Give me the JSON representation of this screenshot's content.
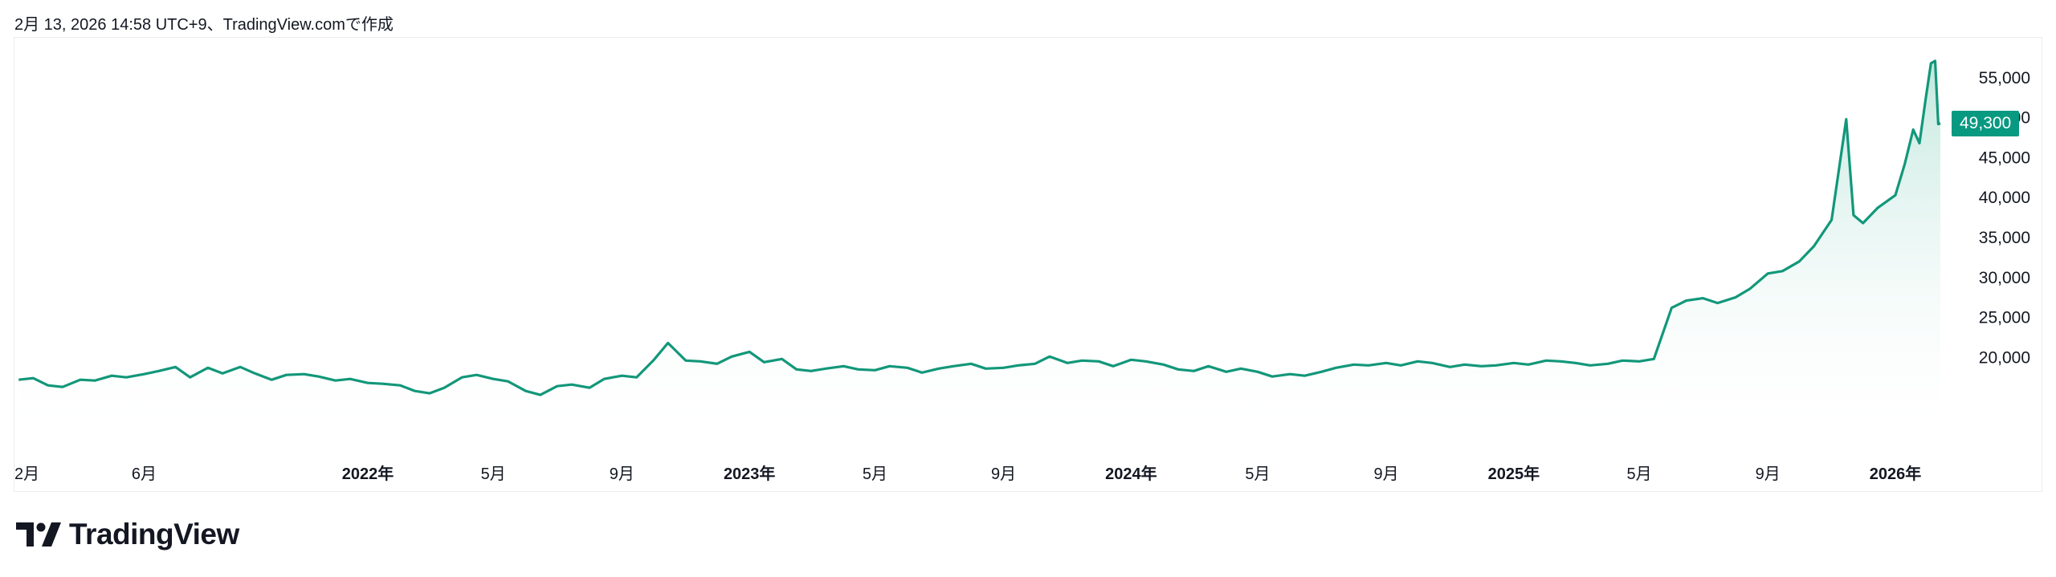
{
  "caption": "2月 13, 2026 14:58 UTC+9、TradingView.comで作成",
  "brand": {
    "name": "TradingView",
    "logo_icon": "tradingview-logo-icon"
  },
  "price_label": {
    "value": "49,300",
    "color": "#089981"
  },
  "colors": {
    "line": "#12977a",
    "fill_top": "#bfe6dc",
    "fill_bottom": "#ffffff"
  },
  "chart_data": {
    "type": "area",
    "title": "",
    "xlabel": "",
    "ylabel": "",
    "ylim": [
      12000,
      60000
    ],
    "y_ticks": [
      {
        "value": 55000,
        "label": "55,000"
      },
      {
        "value": 50000,
        "label": "50,000"
      },
      {
        "value": 45000,
        "label": "45,000"
      },
      {
        "value": 40000,
        "label": "40,000"
      },
      {
        "value": 35000,
        "label": "35,000"
      },
      {
        "value": 30000,
        "label": "30,000"
      },
      {
        "value": 25000,
        "label": "25,000"
      },
      {
        "value": 20000,
        "label": "20,000"
      }
    ],
    "x_ticks": [
      {
        "date": "2021-02-01",
        "label": "2月",
        "year": false
      },
      {
        "date": "2021-06-01",
        "label": "6月",
        "year": false
      },
      {
        "date": "2022-01-01",
        "label": "2022年",
        "year": true
      },
      {
        "date": "2022-05-01",
        "label": "5月",
        "year": false
      },
      {
        "date": "2022-09-01",
        "label": "9月",
        "year": false
      },
      {
        "date": "2023-01-01",
        "label": "2023年",
        "year": true
      },
      {
        "date": "2023-05-01",
        "label": "5月",
        "year": false
      },
      {
        "date": "2023-09-01",
        "label": "9月",
        "year": false
      },
      {
        "date": "2024-01-01",
        "label": "2024年",
        "year": true
      },
      {
        "date": "2024-05-01",
        "label": "5月",
        "year": false
      },
      {
        "date": "2024-09-01",
        "label": "9月",
        "year": false
      },
      {
        "date": "2025-01-01",
        "label": "2025年",
        "year": true
      },
      {
        "date": "2025-05-01",
        "label": "5月",
        "year": false
      },
      {
        "date": "2025-09-01",
        "label": "9月",
        "year": false
      },
      {
        "date": "2026-01-01",
        "label": "2026年",
        "year": true
      }
    ],
    "series": [
      {
        "values": [
          [
            "2021-02-01",
            17200
          ],
          [
            "2021-02-15",
            17400
          ],
          [
            "2021-03-01",
            16500
          ],
          [
            "2021-03-15",
            16300
          ],
          [
            "2021-04-01",
            17200
          ],
          [
            "2021-04-15",
            17100
          ],
          [
            "2021-05-01",
            17700
          ],
          [
            "2021-05-15",
            17500
          ],
          [
            "2021-06-01",
            17900
          ],
          [
            "2021-06-15",
            18300
          ],
          [
            "2021-07-01",
            18800
          ],
          [
            "2021-07-15",
            17500
          ],
          [
            "2021-08-01",
            18700
          ],
          [
            "2021-08-15",
            18000
          ],
          [
            "2021-09-01",
            18800
          ],
          [
            "2021-09-15",
            18000
          ],
          [
            "2021-10-01",
            17200
          ],
          [
            "2021-10-15",
            17800
          ],
          [
            "2021-11-01",
            17900
          ],
          [
            "2021-11-15",
            17600
          ],
          [
            "2021-12-01",
            17100
          ],
          [
            "2021-12-15",
            17300
          ],
          [
            "2022-01-01",
            16800
          ],
          [
            "2022-01-15",
            16700
          ],
          [
            "2022-02-01",
            16500
          ],
          [
            "2022-02-15",
            15800
          ],
          [
            "2022-03-01",
            15500
          ],
          [
            "2022-03-15",
            16200
          ],
          [
            "2022-04-01",
            17500
          ],
          [
            "2022-04-15",
            17800
          ],
          [
            "2022-05-01",
            17300
          ],
          [
            "2022-05-15",
            17000
          ],
          [
            "2022-06-01",
            15800
          ],
          [
            "2022-06-15",
            15300
          ],
          [
            "2022-07-01",
            16400
          ],
          [
            "2022-07-15",
            16600
          ],
          [
            "2022-08-01",
            16200
          ],
          [
            "2022-08-15",
            17300
          ],
          [
            "2022-09-01",
            17700
          ],
          [
            "2022-09-15",
            17500
          ],
          [
            "2022-10-01",
            19600
          ],
          [
            "2022-10-15",
            21800
          ],
          [
            "2022-11-01",
            19600
          ],
          [
            "2022-11-15",
            19500
          ],
          [
            "2022-12-01",
            19200
          ],
          [
            "2022-12-15",
            20100
          ],
          [
            "2023-01-01",
            20700
          ],
          [
            "2023-01-15",
            19400
          ],
          [
            "2023-02-01",
            19800
          ],
          [
            "2023-02-15",
            18500
          ],
          [
            "2023-03-01",
            18300
          ],
          [
            "2023-03-15",
            18600
          ],
          [
            "2023-04-01",
            18900
          ],
          [
            "2023-04-15",
            18500
          ],
          [
            "2023-05-01",
            18400
          ],
          [
            "2023-05-15",
            18900
          ],
          [
            "2023-06-01",
            18700
          ],
          [
            "2023-06-15",
            18100
          ],
          [
            "2023-07-01",
            18600
          ],
          [
            "2023-07-15",
            18900
          ],
          [
            "2023-08-01",
            19200
          ],
          [
            "2023-08-15",
            18600
          ],
          [
            "2023-09-01",
            18700
          ],
          [
            "2023-09-15",
            19000
          ],
          [
            "2023-10-01",
            19200
          ],
          [
            "2023-10-15",
            20100
          ],
          [
            "2023-11-01",
            19300
          ],
          [
            "2023-11-15",
            19600
          ],
          [
            "2023-12-01",
            19500
          ],
          [
            "2023-12-15",
            18900
          ],
          [
            "2024-01-01",
            19700
          ],
          [
            "2024-01-15",
            19500
          ],
          [
            "2024-02-01",
            19100
          ],
          [
            "2024-02-15",
            18500
          ],
          [
            "2024-03-01",
            18300
          ],
          [
            "2024-03-15",
            18900
          ],
          [
            "2024-04-01",
            18200
          ],
          [
            "2024-04-15",
            18600
          ],
          [
            "2024-05-01",
            18200
          ],
          [
            "2024-05-15",
            17600
          ],
          [
            "2024-06-01",
            17900
          ],
          [
            "2024-06-15",
            17700
          ],
          [
            "2024-07-01",
            18200
          ],
          [
            "2024-07-15",
            18700
          ],
          [
            "2024-08-01",
            19100
          ],
          [
            "2024-08-15",
            19000
          ],
          [
            "2024-09-01",
            19300
          ],
          [
            "2024-09-15",
            19000
          ],
          [
            "2024-10-01",
            19500
          ],
          [
            "2024-10-15",
            19300
          ],
          [
            "2024-11-01",
            18800
          ],
          [
            "2024-11-15",
            19100
          ],
          [
            "2024-12-01",
            18900
          ],
          [
            "2024-12-15",
            19000
          ],
          [
            "2025-01-01",
            19300
          ],
          [
            "2025-01-15",
            19100
          ],
          [
            "2025-02-01",
            19600
          ],
          [
            "2025-02-15",
            19500
          ],
          [
            "2025-03-01",
            19300
          ],
          [
            "2025-03-15",
            19000
          ],
          [
            "2025-04-01",
            19200
          ],
          [
            "2025-04-15",
            19600
          ],
          [
            "2025-05-01",
            19500
          ],
          [
            "2025-05-15",
            19800
          ]
        ],
        "values_note": ""
      }
    ]
  }
}
